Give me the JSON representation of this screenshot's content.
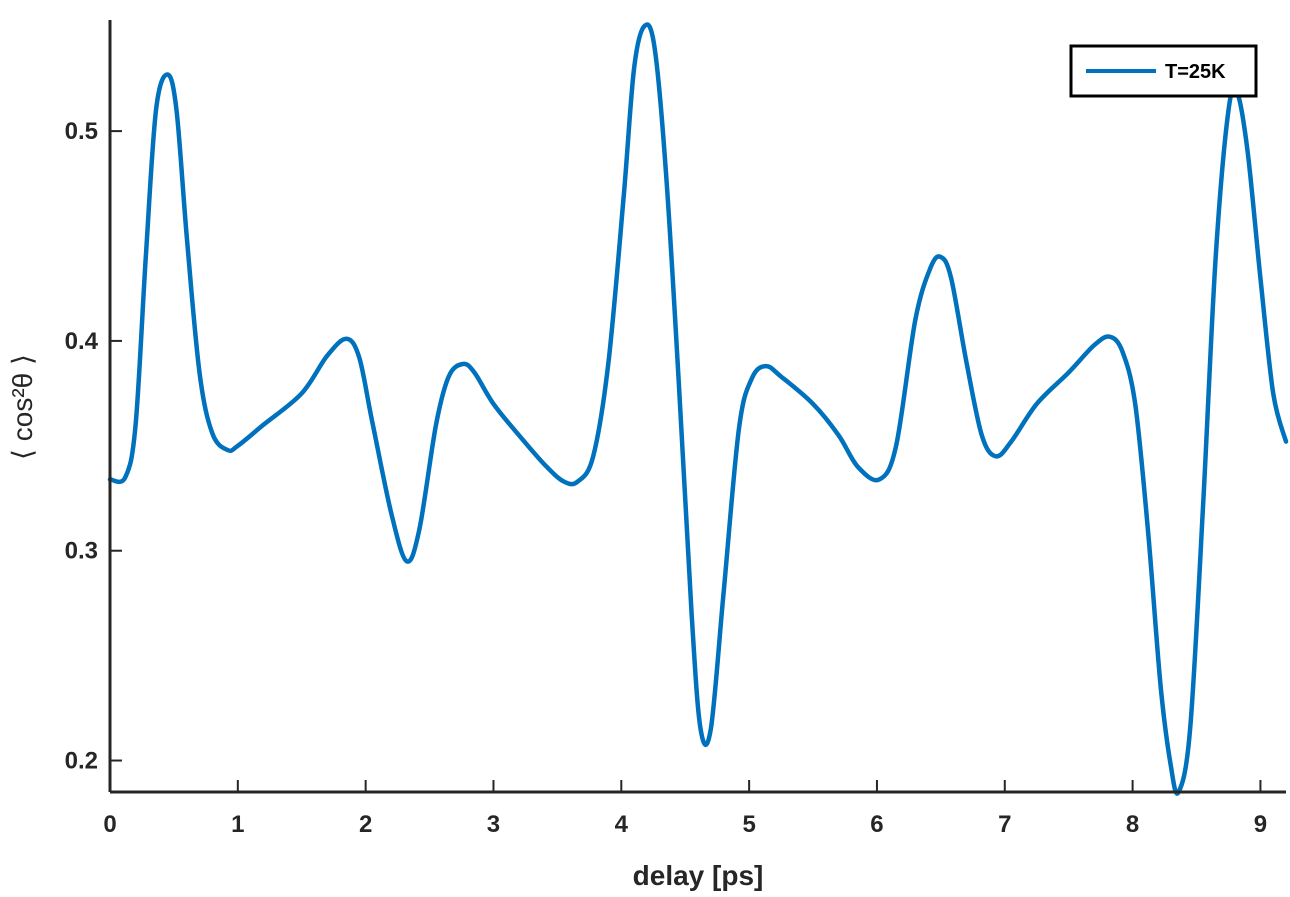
{
  "chart_data": {
    "type": "line",
    "title": "",
    "xlabel": "delay [ps]",
    "ylabel": "⟨ cos²θ ⟩",
    "xlim": [
      0,
      9.2
    ],
    "ylim": [
      0.185,
      0.552
    ],
    "x_ticks": [
      0,
      1,
      2,
      3,
      4,
      5,
      6,
      7,
      8,
      9
    ],
    "x_tick_labels": [
      "0",
      "1",
      "2",
      "3",
      "4",
      "5",
      "6",
      "7",
      "8",
      "9"
    ],
    "y_ticks": [
      0.2,
      0.3,
      0.4,
      0.5
    ],
    "y_tick_labels": [
      "0.2",
      "0.3",
      "0.4",
      "0.5"
    ],
    "grid": false,
    "legend_position": "top-right",
    "color": "#0072BD",
    "series": [
      {
        "name": "T=25K",
        "x": [
          0,
          0.12,
          0.2,
          0.28,
          0.36,
          0.45,
          0.52,
          0.6,
          0.7,
          0.8,
          0.92,
          1.0,
          1.2,
          1.5,
          1.7,
          1.85,
          1.95,
          2.05,
          2.2,
          2.32,
          2.42,
          2.55,
          2.65,
          2.76,
          2.85,
          3.0,
          3.2,
          3.4,
          3.55,
          3.66,
          3.78,
          3.9,
          4.02,
          4.1,
          4.18,
          4.26,
          4.35,
          4.45,
          4.55,
          4.62,
          4.7,
          4.8,
          4.92,
          5.02,
          5.13,
          5.25,
          5.5,
          5.7,
          5.85,
          6.02,
          6.15,
          6.3,
          6.42,
          6.5,
          6.58,
          6.7,
          6.82,
          6.93,
          7.05,
          7.25,
          7.5,
          7.7,
          7.82,
          7.92,
          8.02,
          8.12,
          8.22,
          8.3,
          8.36,
          8.45,
          8.55,
          8.65,
          8.75,
          8.82,
          8.9,
          9.0,
          9.1,
          9.2
        ],
        "y": [
          0.334,
          0.335,
          0.36,
          0.44,
          0.51,
          0.527,
          0.51,
          0.45,
          0.385,
          0.356,
          0.348,
          0.35,
          0.36,
          0.375,
          0.393,
          0.401,
          0.392,
          0.362,
          0.318,
          0.295,
          0.31,
          0.36,
          0.383,
          0.389,
          0.385,
          0.37,
          0.355,
          0.341,
          0.333,
          0.333,
          0.345,
          0.39,
          0.47,
          0.53,
          0.55,
          0.54,
          0.48,
          0.38,
          0.27,
          0.215,
          0.215,
          0.28,
          0.358,
          0.382,
          0.388,
          0.383,
          0.37,
          0.355,
          0.34,
          0.334,
          0.35,
          0.41,
          0.435,
          0.44,
          0.43,
          0.39,
          0.355,
          0.345,
          0.352,
          0.37,
          0.385,
          0.398,
          0.402,
          0.395,
          0.37,
          0.31,
          0.235,
          0.197,
          0.185,
          0.215,
          0.32,
          0.44,
          0.51,
          0.518,
          0.49,
          0.43,
          0.375,
          0.352
        ]
      }
    ]
  }
}
